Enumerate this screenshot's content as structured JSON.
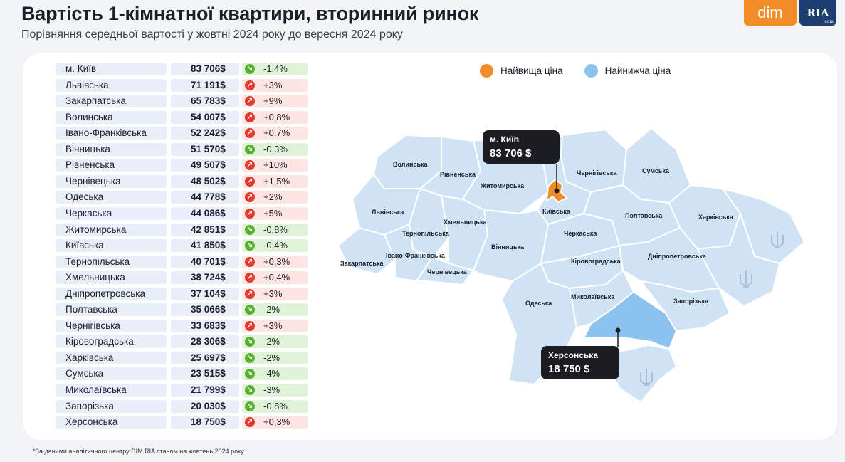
{
  "title": "Вартість 1-кімнатної квартири, вторинний ринок",
  "subtitle": "Порівняння середньої вартості у жовтні 2024 року до вересня 2024 року",
  "logos": {
    "dim": "dim",
    "ria": "RIA",
    "ria_sub": ".com"
  },
  "legend": {
    "highest": {
      "label": "Найвища ціна",
      "color": "#f28c28"
    },
    "lowest": {
      "label": "Найнижча ціна",
      "color": "#8cc3ee"
    }
  },
  "rows": [
    {
      "region": "м. Київ",
      "price": "83 706$",
      "change": "-1,4%",
      "dir": "down"
    },
    {
      "region": "Львівська",
      "price": "71 191$",
      "change": "+3%",
      "dir": "up"
    },
    {
      "region": "Закарпатська",
      "price": "65 783$",
      "change": "+9%",
      "dir": "up"
    },
    {
      "region": "Волинська",
      "price": "54 007$",
      "change": "+0,8%",
      "dir": "up"
    },
    {
      "region": "Івано-Франківська",
      "price": "52 242$",
      "change": "+0,7%",
      "dir": "up"
    },
    {
      "region": "Вінницька",
      "price": "51 570$",
      "change": "-0,3%",
      "dir": "down"
    },
    {
      "region": "Рівненська",
      "price": "49 507$",
      "change": "+10%",
      "dir": "up"
    },
    {
      "region": "Чернівецька",
      "price": "48 502$",
      "change": "+1,5%",
      "dir": "up"
    },
    {
      "region": "Одеська",
      "price": "44 778$",
      "change": "+2%",
      "dir": "up"
    },
    {
      "region": "Черкаська",
      "price": "44 086$",
      "change": "+5%",
      "dir": "up"
    },
    {
      "region": "Житомирська",
      "price": "42 851$",
      "change": "-0,8%",
      "dir": "down"
    },
    {
      "region": "Київська",
      "price": "41 850$",
      "change": "-0,4%",
      "dir": "down"
    },
    {
      "region": "Тернопільська",
      "price": "40 701$",
      "change": "+0,3%",
      "dir": "up"
    },
    {
      "region": "Хмельницька",
      "price": "38 724$",
      "change": "+0,4%",
      "dir": "up"
    },
    {
      "region": "Дніпропетровська",
      "price": "37 104$",
      "change": "+3%",
      "dir": "up"
    },
    {
      "region": "Полтавська",
      "price": "35 066$",
      "change": "-2%",
      "dir": "down"
    },
    {
      "region": "Чернігівська",
      "price": "33 683$",
      "change": "+3%",
      "dir": "up"
    },
    {
      "region": "Кіровоградська",
      "price": "28 306$",
      "change": "-2%",
      "dir": "down"
    },
    {
      "region": "Харківська",
      "price": "25 697$",
      "change": "-2%",
      "dir": "down"
    },
    {
      "region": "Сумська",
      "price": "23 515$",
      "change": "-4%",
      "dir": "down"
    },
    {
      "region": "Миколаївська",
      "price": "21 799$",
      "change": "-3%",
      "dir": "down"
    },
    {
      "region": "Запорізька",
      "price": "20 030$",
      "change": "-0,8%",
      "dir": "down"
    },
    {
      "region": "Херсонська",
      "price": "18 750$",
      "change": "+0,3%",
      "dir": "up"
    }
  ],
  "map": {
    "labels": {
      "volynska": "Волинська",
      "rivnenska": "Рівненська",
      "zhytomyrska": "Житомирська",
      "chernihivska": "Чернігівська",
      "sumska": "Сумська",
      "lvivska": "Львівська",
      "khmelnytska": "Хмельницька",
      "kyivska": "Київська",
      "poltavska": "Полтавська",
      "kharkivska": "Харківська",
      "ternopilska": "Тернопільська",
      "cherkaska": "Черкаська",
      "ivano_frankivska": "Івано-Франківська",
      "vinnytska": "Вінницька",
      "zakarpatska": "Закарпатська",
      "dnipropetrovska": "Дніпропетровська",
      "kirovohradska": "Кіровоградська",
      "chernivetska": "Чернівецька",
      "odeska": "Одеська",
      "mykolaivska": "Миколаївська",
      "zaporizka": "Запорізька"
    },
    "colors": {
      "base": "#cfe3f5",
      "border": "#ffffff",
      "highest": "#f28c28",
      "lowest": "#8cc3ee"
    },
    "callouts": {
      "kyiv": {
        "name": "м. Київ",
        "value": "83 706 $"
      },
      "kherson": {
        "name": "Херсонська",
        "value": "18 750 $"
      }
    }
  },
  "footnote": "*За даними аналітичного центру DIM.RIA станом на жовтень 2024 року"
}
